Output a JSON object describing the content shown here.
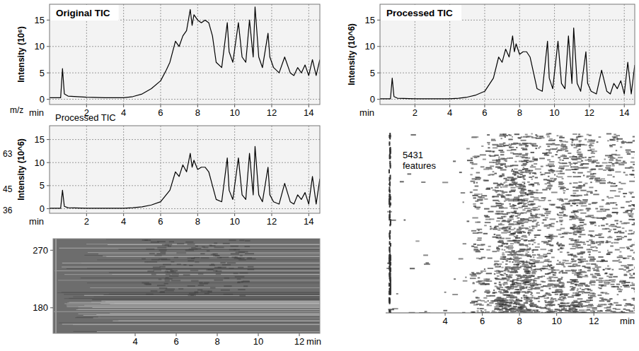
{
  "chart_data": [
    {
      "type": "line",
      "title": "Original TIC",
      "y_label": "Intensity (10⁶)",
      "x_label": "min",
      "xlim": [
        0,
        14.6
      ],
      "ylim": [
        -1,
        18
      ],
      "xticks": [
        2,
        4,
        6,
        8,
        10,
        12,
        14
      ],
      "yticks": [
        0,
        5,
        10,
        15
      ],
      "grid": true,
      "color": "#000000",
      "x": [
        0,
        0.6,
        0.7,
        0.8,
        1.0,
        2,
        3,
        4,
        4.5,
        5,
        5.5,
        6,
        6.3,
        6.5,
        6.8,
        7.0,
        7.2,
        7.4,
        7.6,
        7.7,
        7.8,
        8.0,
        8.2,
        8.4,
        8.6,
        8.8,
        9.0,
        9.3,
        9.6,
        9.7,
        9.9,
        10.2,
        10.4,
        10.6,
        10.8,
        11.0,
        11.1,
        11.3,
        11.5,
        11.8,
        11.9,
        12.1,
        12.4,
        12.7,
        13.0,
        13.2,
        13.4,
        13.6,
        13.8,
        14.0,
        14.2,
        14.4,
        14.6
      ],
      "values": [
        0.3,
        0.3,
        5.8,
        1.0,
        0.6,
        0.4,
        0.3,
        0.3,
        0.5,
        1.0,
        2.0,
        3.5,
        5.5,
        7,
        11,
        10,
        12,
        13,
        17,
        14,
        16,
        15,
        14.5,
        15,
        14.5,
        12,
        7,
        6,
        14.5,
        9,
        7,
        14.5,
        8,
        7,
        15,
        8,
        17.5,
        8,
        6,
        12.5,
        8,
        6,
        5,
        8,
        5,
        4.5,
        6,
        5,
        6.5,
        4.5,
        7.5,
        4.5,
        7.5
      ]
    },
    {
      "type": "line",
      "title": "Processed TIC",
      "y_label": "Intensity (10^6)",
      "x_label": "min",
      "xlim": [
        0,
        14.6
      ],
      "ylim": [
        -1,
        18
      ],
      "xticks": [
        2,
        4,
        6,
        8,
        10,
        12,
        14
      ],
      "yticks": [
        0,
        5,
        10,
        15
      ],
      "grid": true,
      "color": "#000000",
      "x": [
        0,
        0.6,
        0.7,
        0.8,
        1.0,
        2,
        3,
        4,
        4.5,
        5,
        5.5,
        6,
        6.3,
        6.5,
        6.8,
        7.0,
        7.2,
        7.4,
        7.6,
        7.7,
        7.8,
        8.0,
        8.2,
        8.4,
        8.6,
        8.8,
        9.0,
        9.3,
        9.6,
        9.7,
        9.9,
        10.2,
        10.4,
        10.6,
        10.8,
        11.0,
        11.1,
        11.3,
        11.5,
        11.8,
        11.9,
        12.1,
        12.4,
        12.7,
        13.0,
        13.2,
        13.4,
        13.6,
        13.8,
        14.0,
        14.2,
        14.4,
        14.6
      ],
      "values": [
        0.1,
        0.1,
        4,
        0.5,
        0.2,
        0.1,
        0.1,
        0.1,
        0.2,
        0.4,
        0.8,
        1.5,
        3,
        4,
        8,
        7,
        9.5,
        8,
        12,
        9,
        10.5,
        8.5,
        9,
        9,
        8,
        5,
        2,
        1.5,
        11,
        4,
        2,
        11,
        3,
        2,
        12,
        3,
        13.5,
        3,
        1.5,
        9,
        3,
        1.5,
        1,
        5.5,
        1.5,
        1,
        3,
        2,
        3.5,
        1,
        7,
        1,
        6.5
      ]
    },
    {
      "type": "line",
      "title": "Processed TIC",
      "y_label": "Intensity (10^6)",
      "x_label": "min",
      "annotations": [
        "m/z",
        "63",
        "45",
        "36"
      ],
      "xlim": [
        0,
        14.6
      ],
      "ylim": [
        -1,
        18
      ],
      "xticks": [
        2,
        4,
        6,
        8,
        10,
        12,
        14
      ],
      "yticks": [
        0,
        5,
        10,
        15
      ],
      "grid": true,
      "color": "#000000",
      "x": [
        0,
        0.6,
        0.7,
        0.8,
        1.0,
        2,
        3,
        4,
        4.5,
        5,
        5.5,
        6,
        6.3,
        6.5,
        6.8,
        7.0,
        7.2,
        7.4,
        7.6,
        7.7,
        7.8,
        8.0,
        8.2,
        8.4,
        8.6,
        8.8,
        9.0,
        9.3,
        9.6,
        9.7,
        9.9,
        10.2,
        10.4,
        10.6,
        10.8,
        11.0,
        11.1,
        11.3,
        11.5,
        11.8,
        11.9,
        12.1,
        12.4,
        12.7,
        13.0,
        13.2,
        13.4,
        13.6,
        13.8,
        14.0,
        14.2,
        14.4,
        14.6
      ],
      "values": [
        0.1,
        0.1,
        4,
        0.5,
        0.2,
        0.1,
        0.1,
        0.1,
        0.2,
        0.4,
        0.8,
        1.5,
        3,
        4,
        8,
        7,
        9.5,
        8,
        12,
        9,
        10.5,
        8.5,
        9,
        9,
        8,
        5,
        2,
        1.5,
        11,
        4,
        2,
        11,
        3,
        2,
        12,
        3,
        13.5,
        3,
        1.5,
        9,
        3,
        1.5,
        1,
        5.5,
        1.5,
        1,
        3,
        2,
        3.5,
        1,
        7,
        1,
        6.5
      ]
    },
    {
      "type": "image",
      "x_label": "min",
      "xlim": [
        0,
        13
      ],
      "ylim": [
        140,
        288
      ],
      "xticks": [
        4,
        6,
        8,
        10,
        12
      ],
      "yticks": [
        180,
        270
      ]
    },
    {
      "type": "image",
      "x_label": "min",
      "annotations": [
        "5431 features"
      ],
      "xlim": [
        0.8,
        14.2
      ],
      "xticks": [
        4,
        6,
        8,
        10,
        12
      ],
      "tick_labels": "x"
    }
  ]
}
